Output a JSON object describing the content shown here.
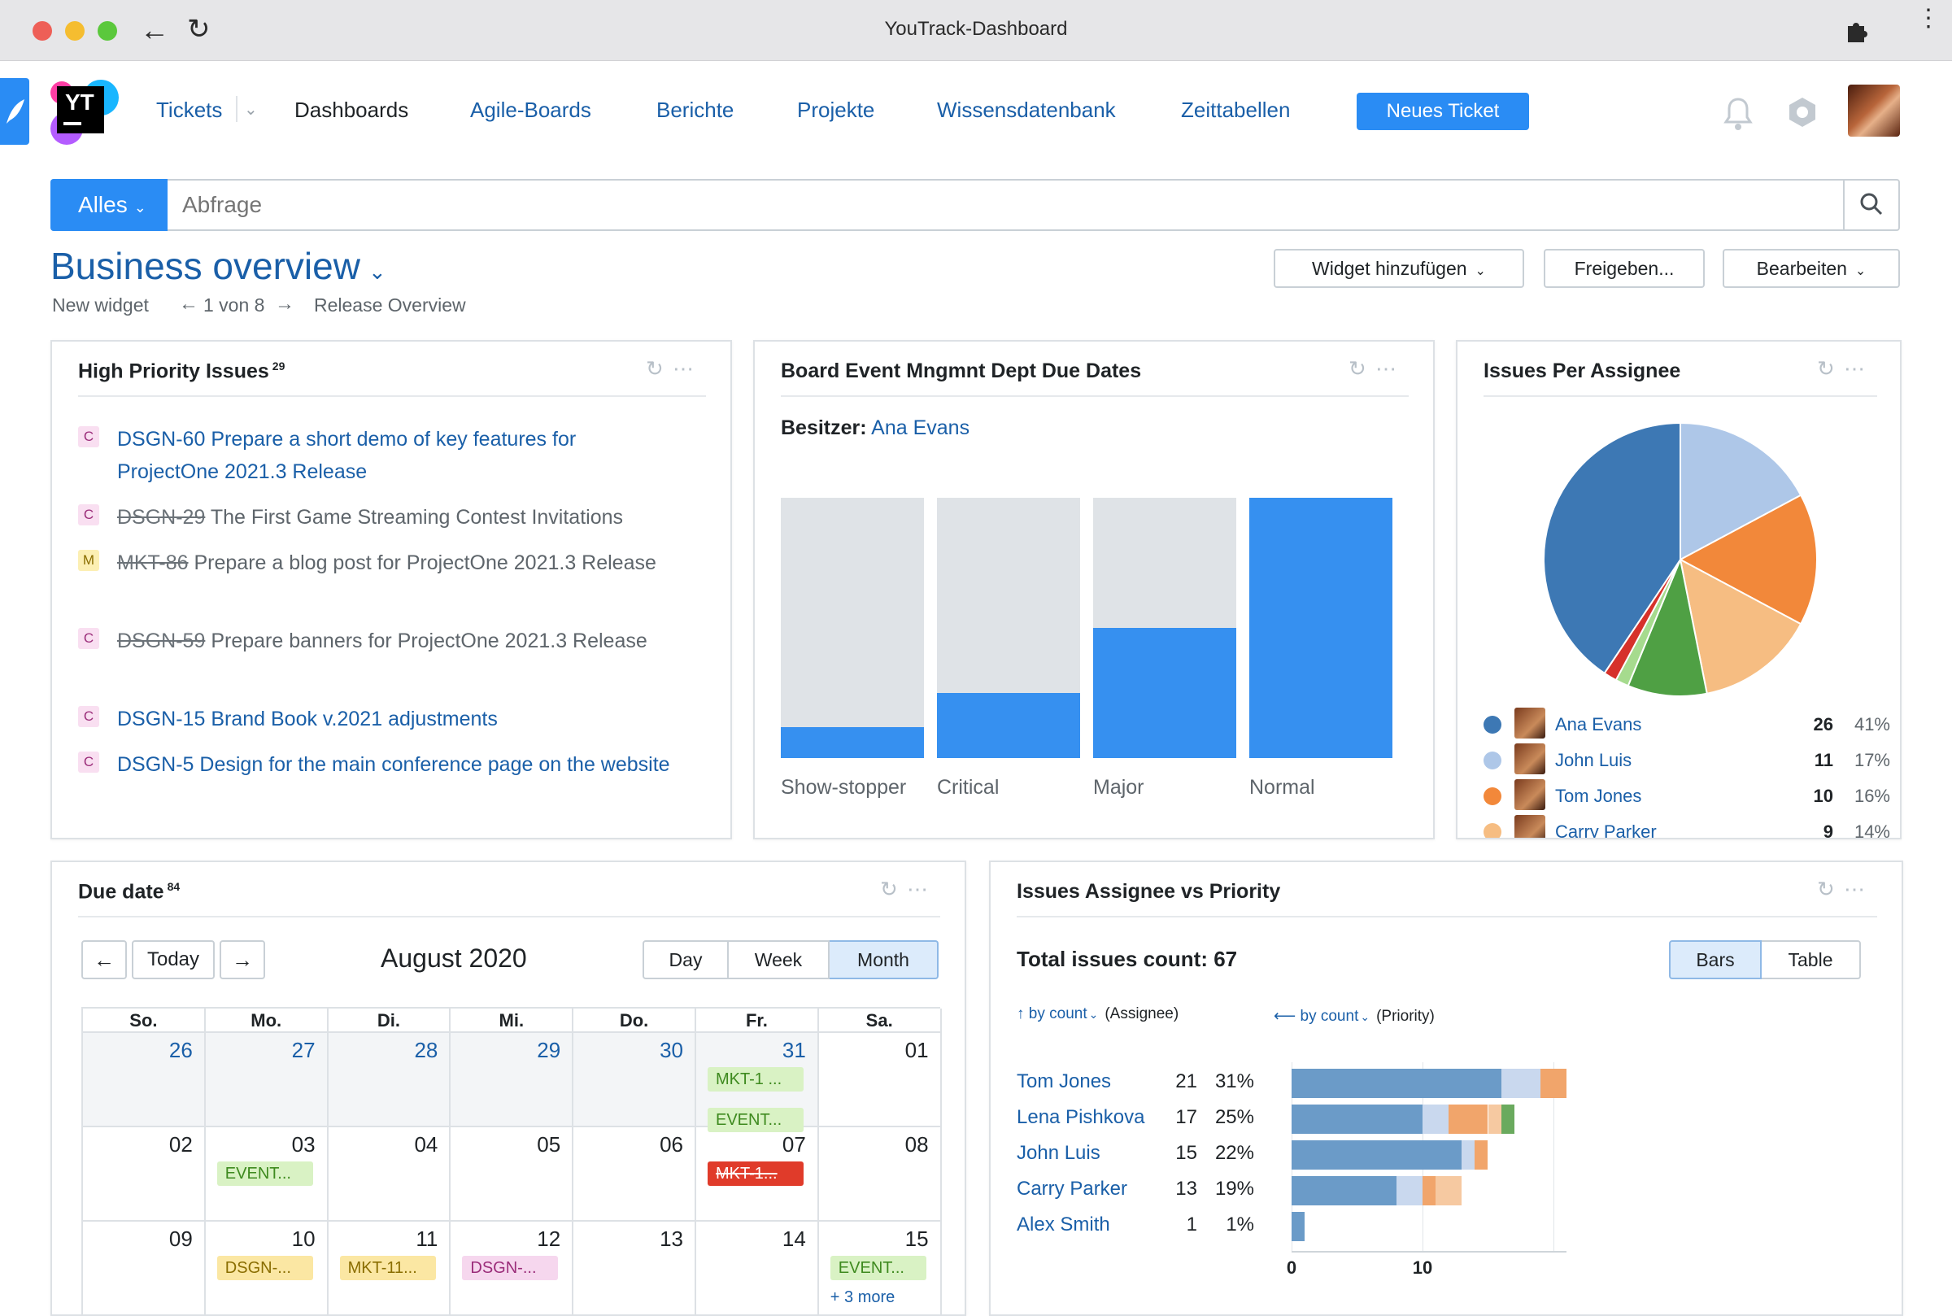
{
  "window": {
    "title": "YouTrack-Dashboard"
  },
  "nav": {
    "logo": "YT",
    "tickets": "Tickets",
    "dashboards": "Dashboards",
    "agile": "Agile-Boards",
    "reports": "Berichte",
    "projects": "Projekte",
    "kb": "Wissensdatenbank",
    "timesheets": "Zeittabellen",
    "new_ticket": "Neues Ticket"
  },
  "search": {
    "scope": "Alles",
    "placeholder": "Abfrage"
  },
  "dashboard": {
    "title": "Business overview",
    "new_widget": "New widget",
    "pager": "1 von 8",
    "release_overview": "Release Overview",
    "add_widget": "Widget hinzufügen",
    "share": "Freigeben...",
    "edit": "Bearbeiten"
  },
  "high_priority": {
    "title": "High Priority Issues",
    "count": "29",
    "issues": [
      {
        "tag": "C",
        "id": "DSGN-60",
        "title": "Prepare a short demo of key features for ProjectOne 2021.3 Release",
        "resolved": false
      },
      {
        "tag": "C",
        "id": "DSGN-29",
        "title": "The First Game Streaming Contest Invitations",
        "resolved": true
      },
      {
        "tag": "M",
        "id": "MKT-86",
        "title": "Prepare a blog post for ProjectOne 2021.3 Release",
        "resolved": true
      },
      {
        "tag": "C",
        "id": "DSGN-59",
        "title": "Prepare banners for ProjectOne 2021.3 Release",
        "resolved": true
      },
      {
        "tag": "C",
        "id": "DSGN-15",
        "title": "Brand Book v.2021 adjustments",
        "resolved": false
      },
      {
        "tag": "C",
        "id": "DSGN-5",
        "title": "Design for the main conference page on the website",
        "resolved": false
      }
    ]
  },
  "due_dates_widget": {
    "title": "Board Event Mngmnt Dept Due Dates",
    "owner_label": "Besitzer:",
    "owner": "Ana Evans",
    "bars": [
      {
        "label": "Show-stopper",
        "fill": 0.12
      },
      {
        "label": "Critical",
        "fill": 0.25
      },
      {
        "label": "Major",
        "fill": 0.5
      },
      {
        "label": "Normal",
        "fill": 1.0
      }
    ]
  },
  "assignee_widget": {
    "title": "Issues Per Assignee",
    "colors": [
      "#3d78b4",
      "#aec7e8",
      "#f2883a",
      "#f6bd82",
      "#4fa044",
      "#a6db8e",
      "#d6312a"
    ],
    "legend": [
      {
        "name": "Ana Evans",
        "count": "26",
        "pct": "41%",
        "color": "#3d78b4"
      },
      {
        "name": "John Luis",
        "count": "11",
        "pct": "17%",
        "color": "#aec7e8"
      },
      {
        "name": "Tom Jones",
        "count": "10",
        "pct": "16%",
        "color": "#f2883a"
      },
      {
        "name": "Carry Parker",
        "count": "9",
        "pct": "14%",
        "color": "#f6bd82"
      }
    ],
    "pie_values": [
      26,
      11,
      10,
      9,
      6,
      1,
      1
    ]
  },
  "due_date_widget": {
    "title": "Due date",
    "count": "84",
    "today": "Today",
    "month_title": "August 2020",
    "views": [
      "Day",
      "Week",
      "Month"
    ],
    "active_view": "Month",
    "weekdays": [
      "So.",
      "Mo.",
      "Di.",
      "Mi.",
      "Do.",
      "Fr.",
      "Sa."
    ],
    "weeks": [
      [
        {
          "d": "26",
          "other": true
        },
        {
          "d": "27",
          "other": true
        },
        {
          "d": "28",
          "other": true
        },
        {
          "d": "29",
          "other": true
        },
        {
          "d": "30",
          "other": true
        },
        {
          "d": "31",
          "other": true,
          "events": [
            {
              "t": "MKT-1 ...",
              "c": "g"
            },
            {
              "t": "EVENT...",
              "c": "g"
            }
          ]
        },
        {
          "d": "01"
        }
      ],
      [
        {
          "d": "02"
        },
        {
          "d": "03",
          "events": [
            {
              "t": "EVENT...",
              "c": "g"
            }
          ]
        },
        {
          "d": "04"
        },
        {
          "d": "05"
        },
        {
          "d": "06"
        },
        {
          "d": "07",
          "events": [
            {
              "t": "MKT-1...",
              "c": "r"
            }
          ]
        },
        {
          "d": "08"
        }
      ],
      [
        {
          "d": "09"
        },
        {
          "d": "10",
          "events": [
            {
              "t": "DSGN-...",
              "c": "y"
            }
          ]
        },
        {
          "d": "11",
          "events": [
            {
              "t": "MKT-11...",
              "c": "y"
            }
          ]
        },
        {
          "d": "12",
          "events": [
            {
              "t": "DSGN-...",
              "c": "p"
            }
          ]
        },
        {
          "d": "13"
        },
        {
          "d": "14"
        },
        {
          "d": "15",
          "events": [
            {
              "t": "EVENT...",
              "c": "g"
            }
          ],
          "more": "+ 3 more"
        }
      ]
    ]
  },
  "priority_widget": {
    "title": "Issues Assignee vs Priority",
    "total": "Total issues count: 67",
    "modes": [
      "Bars",
      "Table"
    ],
    "active_mode": "Bars",
    "y_sort": "↑ by count",
    "y_axis": "(Assignee)",
    "x_sort": "⟵ by count",
    "x_axis": "(Priority)",
    "x_ticks": [
      "0",
      "10"
    ]
  },
  "chart_data": [
    {
      "type": "bar",
      "title": "Board Event Mngmnt Dept Due Dates",
      "categories": [
        "Show-stopper",
        "Critical",
        "Major",
        "Normal"
      ],
      "series": [
        {
          "values": [
            0.12,
            0.25,
            0.5,
            1.0
          ]
        }
      ]
    },
    {
      "type": "pie",
      "title": "Issues Per Assignee",
      "categories": [
        "Ana Evans",
        "John Luis",
        "Tom Jones",
        "Carry Parker"
      ],
      "values": [
        26,
        11,
        10,
        9
      ]
    },
    {
      "type": "bar",
      "title": "Issues Assignee vs Priority",
      "categories": [
        "Tom Jones",
        "Lena Pishkova",
        "John Luis",
        "Carry Parker",
        "Alex Smith"
      ],
      "values": [
        21,
        17,
        15,
        13,
        1
      ],
      "percent": [
        "31%",
        "25%",
        "22%",
        "19%",
        "1%"
      ],
      "segments": [
        [
          16,
          3,
          2
        ],
        [
          10,
          2,
          3,
          1,
          1
        ],
        [
          13,
          1,
          1
        ],
        [
          8,
          2,
          1,
          2
        ],
        [
          1
        ]
      ],
      "segment_colors": [
        "#6b9bc8",
        "#c9d8ee",
        "#f1a56b",
        "#f6c9a1",
        "#6aaa5e",
        "#b4e3a0"
      ],
      "xlim": [
        0,
        21
      ]
    }
  ]
}
